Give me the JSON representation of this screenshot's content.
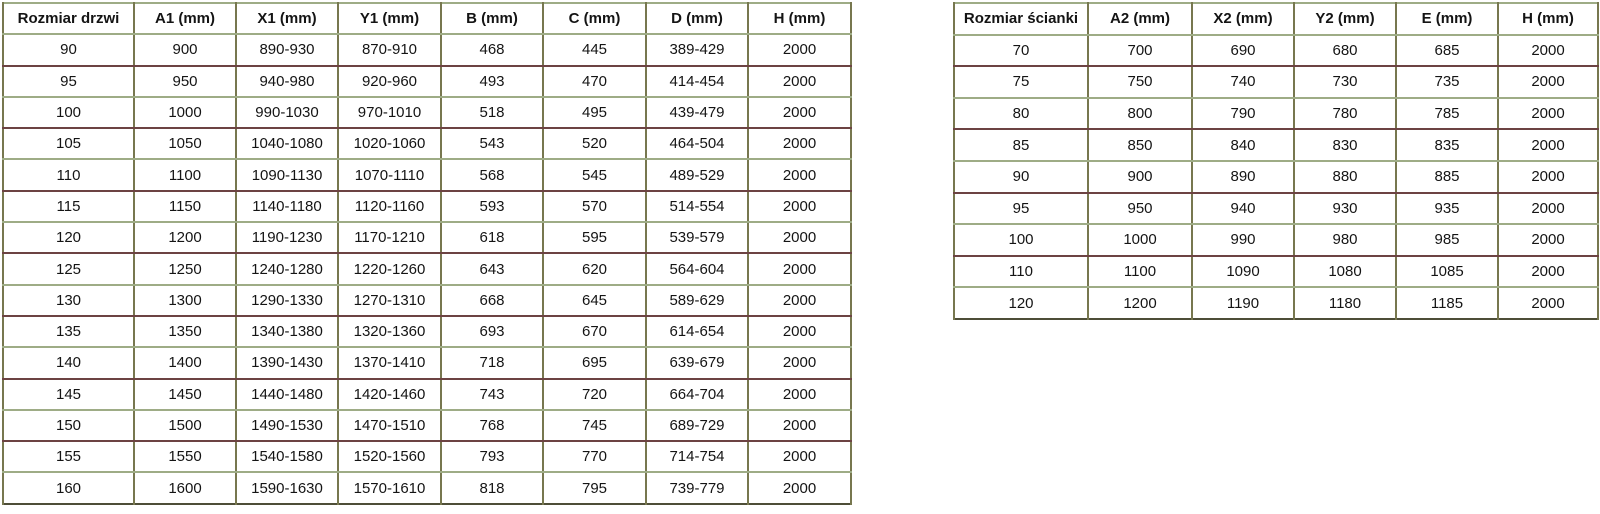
{
  "colors": {
    "background": "#ffffff",
    "text": "#141414",
    "border_olive": "#77774f",
    "border_sage": "#9eac86",
    "border_maroon": "#6c4343",
    "border_outer_dark": "#4e4e38"
  },
  "left_table": {
    "name": "door-size-table",
    "headers": [
      "Rozmiar drzwi",
      "A1 (mm)",
      "X1 (mm)",
      "Y1 (mm)",
      "B (mm)",
      "C (mm)",
      "D (mm)",
      "H (mm)"
    ],
    "rows": [
      [
        "90",
        "900",
        "890-930",
        "870-910",
        "468",
        "445",
        "389-429",
        "2000"
      ],
      [
        "95",
        "950",
        "940-980",
        "920-960",
        "493",
        "470",
        "414-454",
        "2000"
      ],
      [
        "100",
        "1000",
        "990-1030",
        "970-1010",
        "518",
        "495",
        "439-479",
        "2000"
      ],
      [
        "105",
        "1050",
        "1040-1080",
        "1020-1060",
        "543",
        "520",
        "464-504",
        "2000"
      ],
      [
        "110",
        "1100",
        "1090-1130",
        "1070-1110",
        "568",
        "545",
        "489-529",
        "2000"
      ],
      [
        "115",
        "1150",
        "1140-1180",
        "1120-1160",
        "593",
        "570",
        "514-554",
        "2000"
      ],
      [
        "120",
        "1200",
        "1190-1230",
        "1170-1210",
        "618",
        "595",
        "539-579",
        "2000"
      ],
      [
        "125",
        "1250",
        "1240-1280",
        "1220-1260",
        "643",
        "620",
        "564-604",
        "2000"
      ],
      [
        "130",
        "1300",
        "1290-1330",
        "1270-1310",
        "668",
        "645",
        "589-629",
        "2000"
      ],
      [
        "135",
        "1350",
        "1340-1380",
        "1320-1360",
        "693",
        "670",
        "614-654",
        "2000"
      ],
      [
        "140",
        "1400",
        "1390-1430",
        "1370-1410",
        "718",
        "695",
        "639-679",
        "2000"
      ],
      [
        "145",
        "1450",
        "1440-1480",
        "1420-1460",
        "743",
        "720",
        "664-704",
        "2000"
      ],
      [
        "150",
        "1500",
        "1490-1530",
        "1470-1510",
        "768",
        "745",
        "689-729",
        "2000"
      ],
      [
        "155",
        "1550",
        "1540-1580",
        "1520-1560",
        "793",
        "770",
        "714-754",
        "2000"
      ],
      [
        "160",
        "1600",
        "1590-1630",
        "1570-1610",
        "818",
        "795",
        "739-779",
        "2000"
      ]
    ]
  },
  "right_table": {
    "name": "wall-size-table",
    "headers": [
      "Rozmiar ścianki",
      "A2 (mm)",
      "X2 (mm)",
      "Y2 (mm)",
      "E (mm)",
      "H (mm)"
    ],
    "rows": [
      [
        "70",
        "700",
        "690",
        "680",
        "685",
        "2000"
      ],
      [
        "75",
        "750",
        "740",
        "730",
        "735",
        "2000"
      ],
      [
        "80",
        "800",
        "790",
        "780",
        "785",
        "2000"
      ],
      [
        "85",
        "850",
        "840",
        "830",
        "835",
        "2000"
      ],
      [
        "90",
        "900",
        "890",
        "880",
        "885",
        "2000"
      ],
      [
        "95",
        "950",
        "940",
        "930",
        "935",
        "2000"
      ],
      [
        "100",
        "1000",
        "990",
        "980",
        "985",
        "2000"
      ],
      [
        "110",
        "1100",
        "1090",
        "1080",
        "1085",
        "2000"
      ],
      [
        "120",
        "1200",
        "1190",
        "1180",
        "1185",
        "2000"
      ]
    ]
  }
}
